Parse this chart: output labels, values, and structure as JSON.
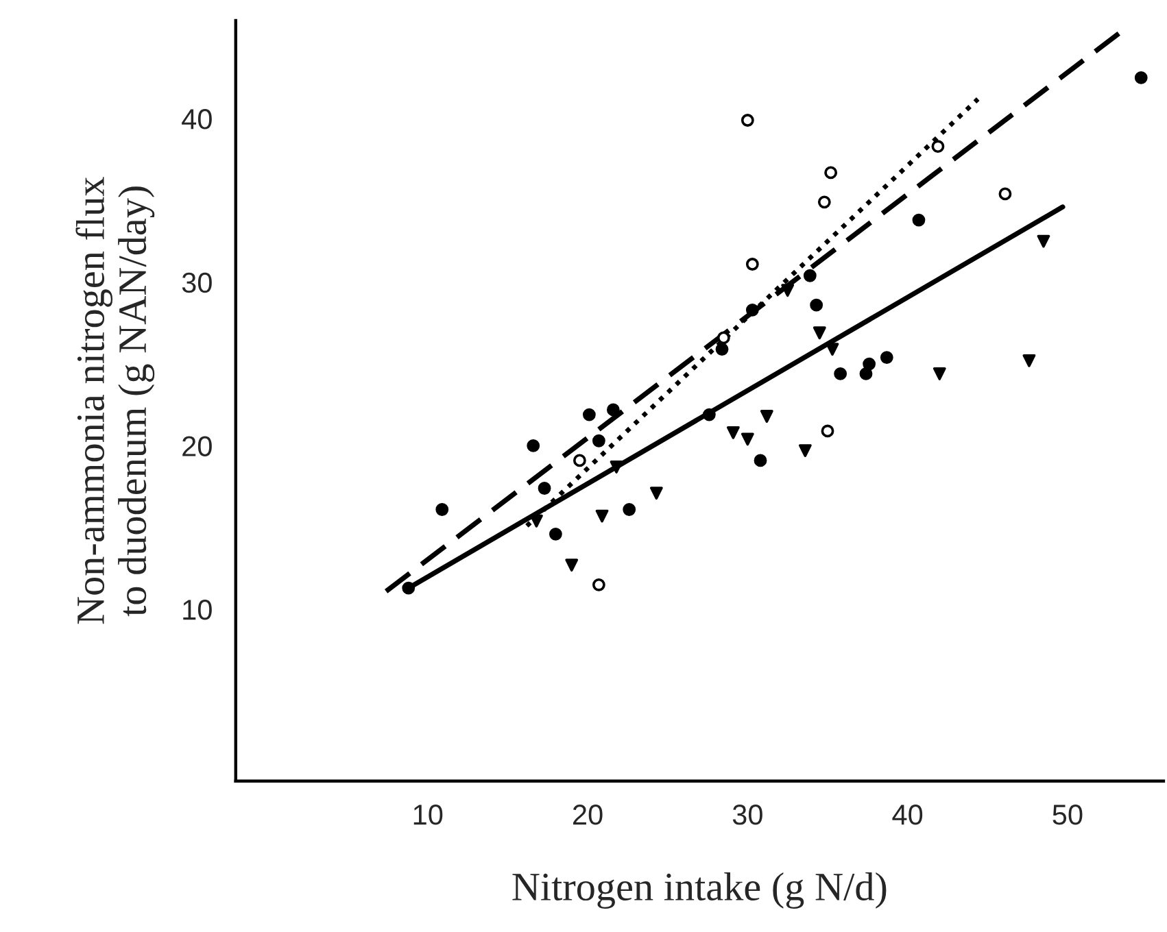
{
  "chart_data": {
    "type": "scatter",
    "xlabel": "Nitrogen intake (g N/d)",
    "ylabel": "Non-ammonia nitrogen flux\nto duodenum (g NAN/day)",
    "xlim": [
      -2,
      56
    ],
    "ylim": [
      -0.5,
      46
    ],
    "xticks": [
      10,
      20,
      30,
      40,
      50
    ],
    "yticks": [
      10,
      20,
      30,
      40
    ],
    "grid": false,
    "legend": false,
    "series": [
      {
        "marker": "circle",
        "color": "#000000",
        "x": [
          10.9,
          16.6,
          17.3,
          18.0,
          20.7,
          20.1,
          21.6,
          22.6,
          8.8,
          27.6,
          30.8,
          40.7,
          33.9,
          30.3,
          34.3,
          28.4,
          35.8,
          37.4,
          37.6,
          38.7,
          54.6
        ],
        "values": [
          16.1,
          20.0,
          17.4,
          14.6,
          20.3,
          21.9,
          22.2,
          16.1,
          11.3,
          21.9,
          19.1,
          33.8,
          30.4,
          28.3,
          28.6,
          25.9,
          24.4,
          24.4,
          25.0,
          25.4,
          42.5
        ]
      },
      {
        "marker": "circle",
        "color": "#ffffff",
        "x": [
          19.5,
          20.7,
          30.0,
          35.2,
          41.9,
          34.8,
          46.1,
          30.3,
          28.5,
          35.0
        ],
        "values": [
          19.1,
          11.5,
          39.9,
          36.7,
          38.3,
          34.9,
          35.4,
          31.1,
          26.6,
          20.9
        ]
      },
      {
        "marker": "triangle",
        "color": "#000000",
        "x": [
          16.8,
          19.0,
          20.9,
          24.3,
          21.8,
          29.1,
          30.0,
          31.2,
          48.5,
          32.5,
          34.5,
          35.3,
          42.0,
          47.6,
          33.6
        ],
        "values": [
          15.4,
          12.7,
          15.7,
          17.1,
          18.7,
          20.8,
          20.4,
          21.8,
          32.5,
          29.5,
          26.9,
          25.9,
          24.4,
          25.2,
          19.7
        ]
      },
      {
        "type": "line",
        "line_style": "dashed",
        "color": "#000000",
        "x": [
          7.4,
          53.6
        ],
        "values": [
          11.1,
          45.5
        ]
      },
      {
        "type": "line",
        "line_style": "dotted",
        "color": "#000000",
        "x": [
          16.2,
          44.4
        ],
        "values": [
          15.1,
          41.2
        ]
      },
      {
        "type": "line",
        "line_style": "solid",
        "color": "#000000",
        "x": [
          8.8,
          49.7
        ],
        "values": [
          11.3,
          34.6
        ]
      }
    ]
  }
}
